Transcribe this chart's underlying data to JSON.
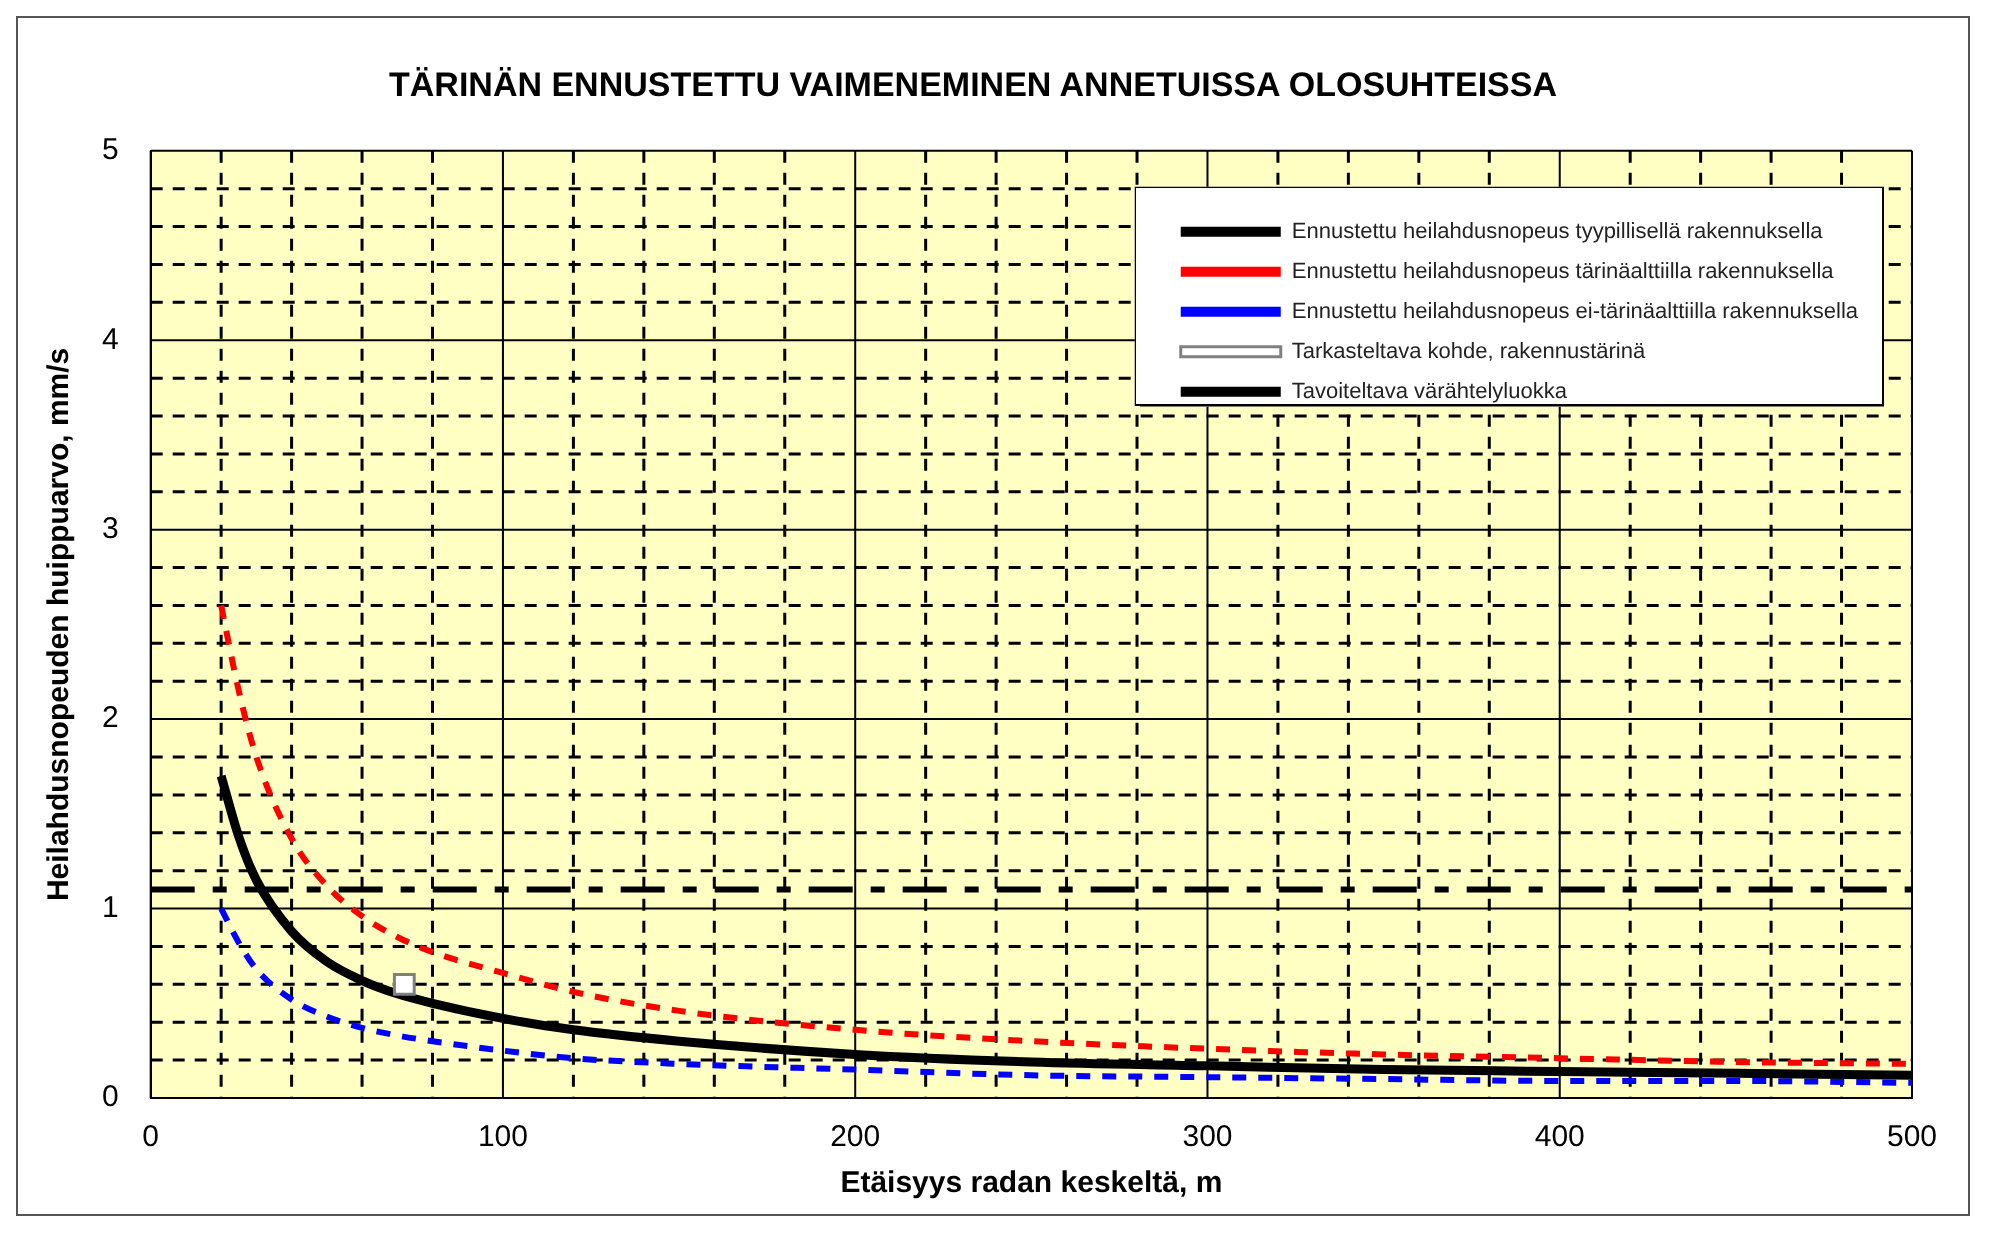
{
  "chart_data": {
    "type": "line",
    "title": "TÄRINÄN ENNUSTETTU VAIMENEMINEN ANNETUISSA OLOSUHTEISSA",
    "xlabel": "Etäisyys radan keskeltä, m",
    "ylabel": "Heilahdusnopeuden huippuarvo, mm/s",
    "xlim": [
      0,
      500
    ],
    "xticks": [
      0,
      100,
      200,
      300,
      400,
      500
    ],
    "ylim": [
      0,
      5
    ],
    "yticks": [
      0,
      1,
      2,
      3,
      4,
      5
    ],
    "grid": true,
    "legend": "top right",
    "series": [
      {
        "name": "Ennustettu heilahdusnopeus tyypillisellä rakennuksella",
        "line_style": "solid",
        "marker": "none",
        "color": "#000000",
        "x": [
          20,
          25,
          30,
          40,
          50,
          60,
          70,
          80,
          100,
          120,
          150,
          200,
          250,
          300,
          350,
          400,
          450,
          500
        ],
        "values": [
          1.7,
          1.38,
          1.15,
          0.88,
          0.72,
          0.62,
          0.55,
          0.5,
          0.42,
          0.36,
          0.3,
          0.23,
          0.19,
          0.17,
          0.15,
          0.14,
          0.13,
          0.12
        ]
      },
      {
        "name": "Ennustettu heilahdusnopeus tärinäalttiilla rakennuksella",
        "line_style": "dashed",
        "marker": "none",
        "color": "#ff0000",
        "x": [
          20,
          25,
          30,
          40,
          50,
          60,
          70,
          80,
          100,
          120,
          150,
          200,
          250,
          300,
          350,
          400,
          450,
          500
        ],
        "values": [
          2.6,
          2.15,
          1.8,
          1.37,
          1.12,
          0.96,
          0.85,
          0.77,
          0.66,
          0.56,
          0.46,
          0.36,
          0.3,
          0.26,
          0.23,
          0.21,
          0.19,
          0.18
        ]
      },
      {
        "name": "Ennustettu heilahdusnopeus ei-tärinäalttiilla rakennuksella",
        "line_style": "dashed",
        "marker": "none",
        "color": "#0000ff",
        "x": [
          20,
          25,
          30,
          40,
          50,
          60,
          70,
          80,
          100,
          120,
          150,
          200,
          250,
          300,
          350,
          400,
          450,
          500
        ],
        "values": [
          1.0,
          0.82,
          0.68,
          0.52,
          0.43,
          0.37,
          0.33,
          0.3,
          0.25,
          0.21,
          0.18,
          0.15,
          0.12,
          0.11,
          0.1,
          0.09,
          0.09,
          0.08
        ]
      },
      {
        "name": "Tarkasteltava kohde, rakennustärinä",
        "type": "scatter",
        "marker": "square",
        "color": "#ffffff",
        "x": [
          72
        ],
        "values": [
          0.6
        ]
      }
    ],
    "ref_lines": [
      {
        "axis": "y",
        "value": 1.1,
        "label": "Tavoiteltava värähtelyluokka",
        "color": "#000000",
        "line_style": "dashed"
      }
    ]
  }
}
